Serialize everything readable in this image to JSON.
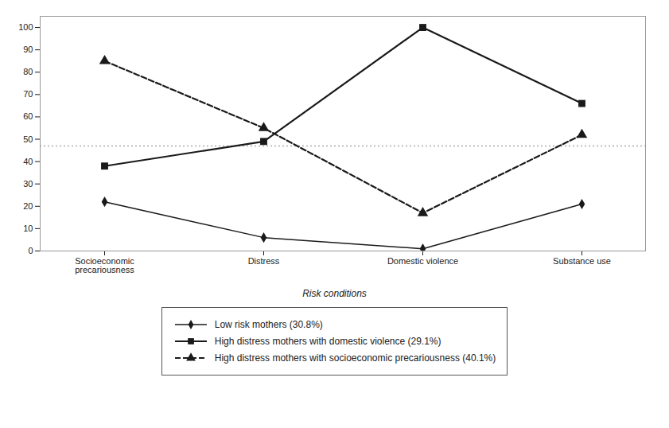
{
  "chart_data": {
    "type": "line",
    "categories": [
      "Socioeconomic\nprecariousness",
      "Distress",
      "Domestic violence",
      "Substance use"
    ],
    "series": [
      {
        "name": "Low risk mothers (30.8%)",
        "color": "#1a1a1a",
        "values": [
          22,
          6,
          1,
          21
        ],
        "marker": "diamond",
        "line_style": "solid"
      },
      {
        "name": "High distress mothers with domestic violence (29.1%)",
        "color": "#1a1a1a",
        "values": [
          38,
          49,
          100,
          66
        ],
        "marker": "square",
        "line_style": "solid"
      },
      {
        "name": "High distress mothers with socioeconomic precariousness (40.1%)",
        "color": "#1a1a1a",
        "values": [
          85,
          55,
          17,
          52
        ],
        "marker": "triangle",
        "line_style": "dashed"
      }
    ],
    "reference_line": {
      "value": 47,
      "color": "#aaaaaa",
      "line_style": "dotted"
    },
    "xlabel": "Risk conditions",
    "ylim": [
      0,
      105
    ],
    "yticks": [
      0,
      10,
      20,
      30,
      40,
      50,
      60,
      70,
      80,
      90,
      100
    ],
    "grid": false,
    "legend": "bottom"
  }
}
